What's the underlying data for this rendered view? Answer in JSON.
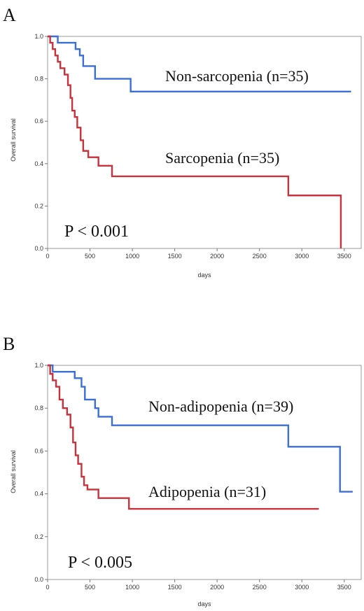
{
  "chart_data": [
    {
      "type": "line",
      "panel_label": "A",
      "xlabel": "days",
      "ylabel": "Overall survival",
      "xlim": [
        0,
        3700
      ],
      "ylim": [
        0,
        1
      ],
      "x_ticks": [
        0,
        500,
        1000,
        1500,
        2000,
        2500,
        3000,
        3500
      ],
      "y_ticks": [
        0.0,
        0.2,
        0.4,
        0.6,
        0.8,
        1.0
      ],
      "grid": false,
      "series": [
        {
          "name": "Non-sarcopenia (n=35)",
          "color": "#3b6fd6",
          "step": [
            [
              0,
              1.0
            ],
            [
              120,
              0.97
            ],
            [
              330,
              0.94
            ],
            [
              380,
              0.91
            ],
            [
              420,
              0.86
            ],
            [
              560,
              0.8
            ],
            [
              980,
              0.74
            ],
            [
              3580,
              0.74
            ]
          ]
        },
        {
          "name": "Sarcopenia (n=35)",
          "color": "#c8323c",
          "step": [
            [
              0,
              1.0
            ],
            [
              30,
              0.97
            ],
            [
              60,
              0.94
            ],
            [
              90,
              0.91
            ],
            [
              120,
              0.88
            ],
            [
              150,
              0.85
            ],
            [
              200,
              0.82
            ],
            [
              240,
              0.77
            ],
            [
              270,
              0.71
            ],
            [
              290,
              0.65
            ],
            [
              320,
              0.62
            ],
            [
              350,
              0.57
            ],
            [
              390,
              0.51
            ],
            [
              420,
              0.46
            ],
            [
              480,
              0.43
            ],
            [
              600,
              0.39
            ],
            [
              760,
              0.34
            ],
            [
              2840,
              0.34
            ],
            [
              2840,
              0.25
            ],
            [
              3460,
              0.25
            ],
            [
              3460,
              0.0
            ]
          ]
        }
      ],
      "annotations": [
        "Non-sarcopenia (n=35)",
        "Sarcopenia (n=35)"
      ],
      "pvalue": "P < 0.001"
    },
    {
      "type": "line",
      "panel_label": "B",
      "xlabel": "days",
      "ylabel": "Overall survival",
      "xlim": [
        0,
        3700
      ],
      "ylim": [
        0,
        1
      ],
      "x_ticks": [
        0,
        500,
        1000,
        1500,
        2000,
        2500,
        3000,
        3500
      ],
      "y_ticks": [
        0.0,
        0.2,
        0.4,
        0.6,
        0.8,
        1.0
      ],
      "grid": false,
      "series": [
        {
          "name": "Non-adipopenia (n=39)",
          "color": "#3b6fd6",
          "step": [
            [
              0,
              1.0
            ],
            [
              60,
              0.97
            ],
            [
              320,
              0.94
            ],
            [
              400,
              0.9
            ],
            [
              440,
              0.84
            ],
            [
              560,
              0.8
            ],
            [
              600,
              0.76
            ],
            [
              760,
              0.72
            ],
            [
              2840,
              0.72
            ],
            [
              2840,
              0.62
            ],
            [
              3450,
              0.62
            ],
            [
              3450,
              0.41
            ],
            [
              3600,
              0.41
            ]
          ]
        },
        {
          "name": "Adipopenia (n=31)",
          "color": "#c8323c",
          "step": [
            [
              0,
              1.0
            ],
            [
              30,
              0.96
            ],
            [
              60,
              0.93
            ],
            [
              100,
              0.9
            ],
            [
              140,
              0.84
            ],
            [
              180,
              0.8
            ],
            [
              230,
              0.77
            ],
            [
              270,
              0.71
            ],
            [
              300,
              0.64
            ],
            [
              330,
              0.58
            ],
            [
              360,
              0.54
            ],
            [
              400,
              0.48
            ],
            [
              430,
              0.44
            ],
            [
              470,
              0.42
            ],
            [
              600,
              0.38
            ],
            [
              960,
              0.33
            ],
            [
              3200,
              0.33
            ]
          ]
        }
      ],
      "annotations": [
        "Non-adipopenia (n=39)",
        "Adipopenia (n=31)"
      ],
      "pvalue": "P < 0.005"
    }
  ]
}
